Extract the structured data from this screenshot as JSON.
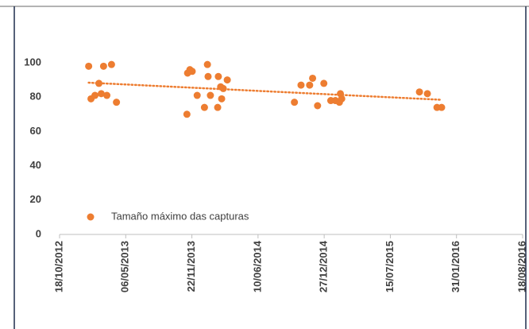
{
  "chart_data": {
    "type": "scatter",
    "x_format": "dd/mm/yyyy",
    "xlim": [
      "18/10/2012",
      "18/08/2016"
    ],
    "xticks": [
      "18/10/2012",
      "06/05/2013",
      "22/11/2013",
      "10/06/2014",
      "27/12/2014",
      "15/07/2015",
      "31/01/2016",
      "18/08/2016"
    ],
    "ylim": [
      0,
      100
    ],
    "yticks": [
      0,
      20,
      40,
      60,
      80,
      100
    ],
    "legend": "lower left",
    "trendline": true,
    "series": [
      {
        "name": "Tamaño máximo das capturas",
        "color": "#ed7d31",
        "x": [
          "14/01/2013",
          "21/01/2013",
          "02/02/2013",
          "14/02/2013",
          "21/02/2013",
          "28/02/2013",
          "10/03/2013",
          "24/03/2013",
          "08/04/2013",
          "07/11/2013",
          "09/11/2013",
          "16/11/2013",
          "23/11/2013",
          "08/12/2013",
          "30/12/2013",
          "08/01/2014",
          "10/01/2014",
          "17/01/2014",
          "08/02/2014",
          "10/02/2014",
          "17/02/2014",
          "20/02/2014",
          "25/02/2014",
          "09/03/2014",
          "28/09/2014",
          "18/10/2014",
          "13/11/2014",
          "22/11/2014",
          "07/12/2014",
          "26/12/2014",
          "16/01/2015",
          "30/01/2015",
          "11/02/2015",
          "14/02/2015",
          "18/02/2015",
          "11/10/2015",
          "04/11/2015",
          "03/12/2015",
          "17/12/2015"
        ],
        "values": [
          98,
          79,
          81,
          88,
          82,
          98,
          81,
          99,
          77,
          70,
          94,
          96,
          95,
          81,
          74,
          99,
          92,
          81,
          74,
          92,
          86,
          79,
          85,
          90,
          77,
          87,
          87,
          91,
          75,
          88,
          78,
          78,
          77,
          82,
          79,
          83,
          82,
          74,
          74
        ]
      }
    ]
  }
}
